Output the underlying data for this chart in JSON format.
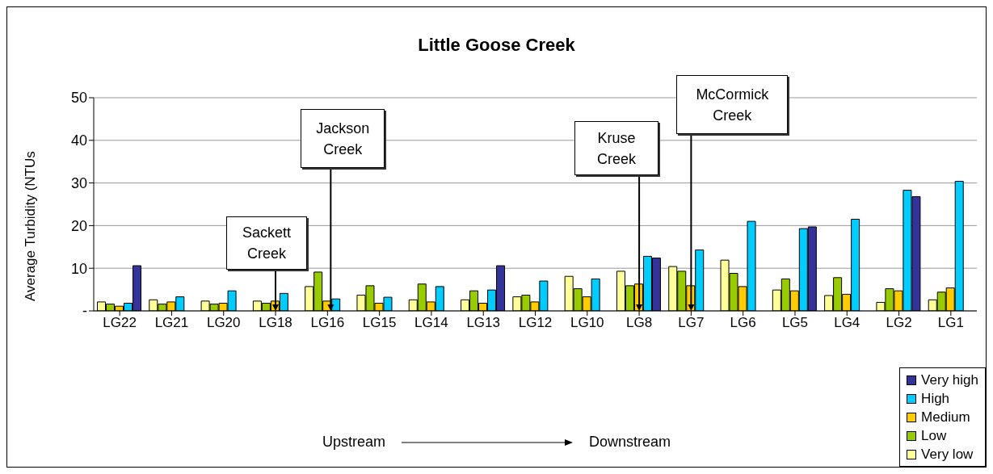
{
  "chart_data": {
    "type": "bar",
    "title": "Little Goose Creek",
    "ylabel": "Average Turbidity (NTUs",
    "categories": [
      "LG22",
      "LG21",
      "LG20",
      "LG18",
      "LG16",
      "LG15",
      "LG14",
      "LG13",
      "LG12",
      "LG10",
      "LG8",
      "LG7",
      "LG6",
      "LG5",
      "LG4",
      "LG2",
      "LG1"
    ],
    "series": [
      {
        "name": "Very low",
        "color": "#ffff99",
        "values": [
          2.1,
          2.6,
          2.3,
          2.3,
          5.7,
          3.7,
          2.6,
          2.6,
          3.3,
          8.1,
          9.3,
          10.4,
          11.9,
          4.9,
          3.6,
          2.0,
          2.6
        ]
      },
      {
        "name": "Low",
        "color": "#99cc00",
        "values": [
          1.6,
          1.6,
          1.6,
          1.8,
          9.1,
          5.9,
          6.3,
          4.7,
          3.7,
          5.2,
          5.9,
          9.3,
          8.8,
          7.5,
          7.8,
          5.2,
          4.4
        ]
      },
      {
        "name": "Medium",
        "color": "#ffcc00",
        "values": [
          1.1,
          2.1,
          1.8,
          2.3,
          2.3,
          1.8,
          2.1,
          1.8,
          2.1,
          3.3,
          6.3,
          5.9,
          5.7,
          4.7,
          3.9,
          4.7,
          5.4
        ]
      },
      {
        "name": "High",
        "color": "#00ccff",
        "values": [
          1.8,
          3.3,
          4.7,
          4.1,
          2.8,
          3.2,
          5.7,
          4.9,
          7.0,
          7.5,
          12.8,
          14.3,
          21.0,
          19.3,
          21.5,
          28.3,
          30.4
        ]
      },
      {
        "name": "Very high",
        "color": "#333399",
        "values": [
          10.6,
          null,
          null,
          null,
          null,
          null,
          null,
          10.6,
          null,
          null,
          12.4,
          null,
          null,
          19.7,
          null,
          26.8,
          null
        ]
      }
    ],
    "ylim": [
      0,
      50
    ],
    "yticks": [
      {
        "value": 0,
        "label": "-"
      },
      10,
      20,
      30,
      40,
      50
    ],
    "grid": "y",
    "legend": "bottom right",
    "annotations": [
      {
        "text": "Sackett Creek",
        "x": "LG18",
        "y": 0
      },
      {
        "text": "Jackson Creek",
        "x": "LG16",
        "y": 0
      },
      {
        "text": "Kruse Creek",
        "x": "LG8",
        "y": 0
      },
      {
        "text": "McCormick Creek",
        "x": "LG7",
        "y": 0
      },
      "Upstream",
      "Downstream"
    ]
  }
}
